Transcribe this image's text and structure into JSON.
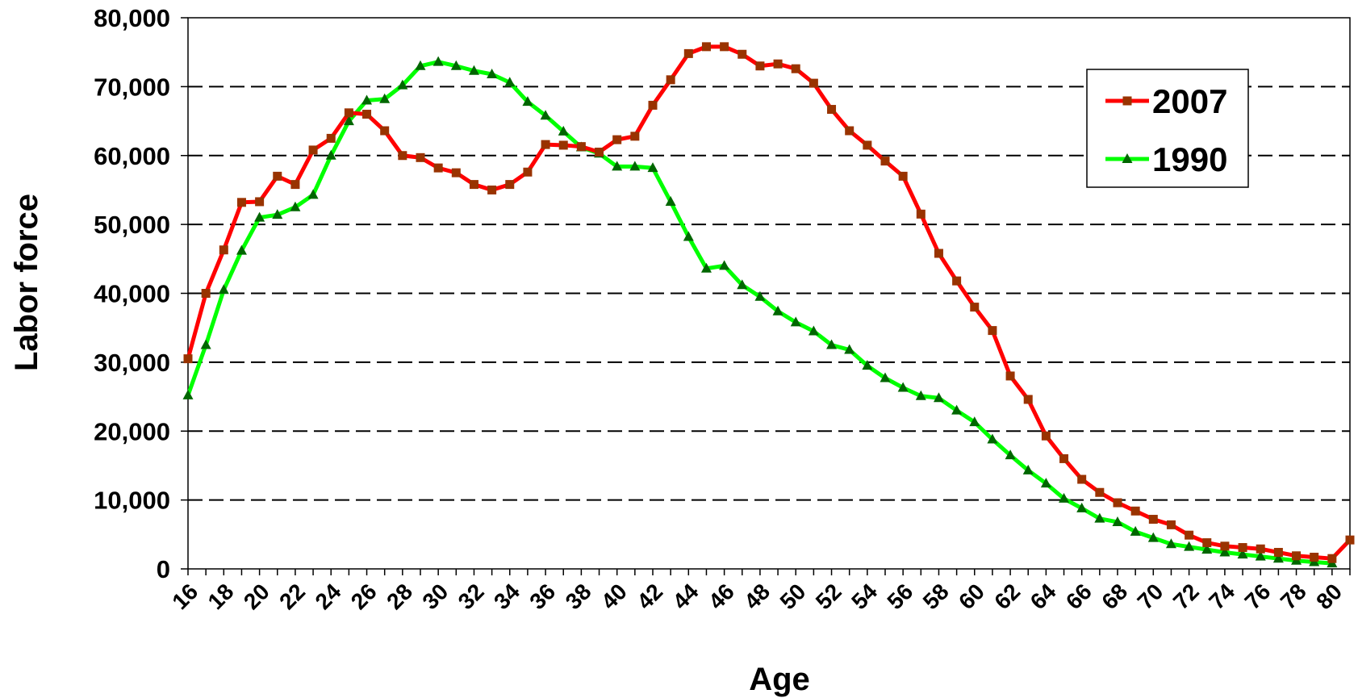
{
  "chart_data": {
    "type": "line",
    "title": "",
    "xlabel": "Age",
    "ylabel": "Labor force",
    "xlim": [
      16,
      81
    ],
    "ylim": [
      0,
      80000
    ],
    "y_ticks": [
      0,
      10000,
      20000,
      30000,
      40000,
      50000,
      60000,
      70000,
      80000
    ],
    "y_tick_labels": [
      "0",
      "10,000",
      "20,000",
      "30,000",
      "40,000",
      "50,000",
      "60,000",
      "70,000",
      "80,000"
    ],
    "x_ticks": [
      16,
      18,
      20,
      22,
      24,
      26,
      28,
      30,
      32,
      34,
      36,
      38,
      40,
      42,
      44,
      46,
      48,
      50,
      52,
      54,
      56,
      58,
      60,
      62,
      64,
      66,
      68,
      70,
      72,
      74,
      76,
      78,
      80
    ],
    "x_tick_labels": [
      "16",
      "18",
      "20",
      "22",
      "24",
      "26",
      "28",
      "30",
      "32",
      "34",
      "36",
      "38",
      "40",
      "42",
      "44",
      "46",
      "48",
      "50",
      "52",
      "54",
      "56",
      "58",
      "60",
      "62",
      "64",
      "66",
      "68",
      "70",
      "72",
      "74",
      "76",
      "78",
      "80"
    ],
    "grid": "horizontal dashed",
    "legend_position": "top-right",
    "series": [
      {
        "name": "2007",
        "color": "#ff0000",
        "marker_color": "#993300",
        "marker": "square",
        "x": [
          16,
          17,
          18,
          19,
          20,
          21,
          22,
          23,
          24,
          25,
          26,
          27,
          28,
          29,
          30,
          31,
          32,
          33,
          34,
          35,
          36,
          37,
          38,
          39,
          40,
          41,
          42,
          43,
          44,
          45,
          46,
          47,
          48,
          49,
          50,
          51,
          52,
          53,
          54,
          55,
          56,
          57,
          58,
          59,
          60,
          61,
          62,
          63,
          64,
          65,
          66,
          67,
          68,
          69,
          70,
          71,
          72,
          73,
          74,
          75,
          76,
          77,
          78,
          79,
          80,
          81
        ],
        "values": [
          30500,
          40000,
          46300,
          53200,
          53300,
          57000,
          55800,
          60800,
          62500,
          66200,
          66000,
          63600,
          60000,
          59700,
          58200,
          57500,
          55800,
          55000,
          55800,
          57600,
          61600,
          61500,
          61300,
          60500,
          62300,
          62800,
          67300,
          71000,
          74800,
          75800,
          75800,
          74700,
          73000,
          73300,
          72600,
          70500,
          66700,
          63600,
          61500,
          59200,
          57000,
          51500,
          45800,
          41800,
          38000,
          34600,
          28000,
          24600,
          19300,
          16000,
          13000,
          11100,
          9600,
          8400,
          7200,
          6400,
          4900,
          3800,
          3300,
          3100,
          2900,
          2400,
          1900,
          1700,
          1500,
          4200
        ]
      },
      {
        "name": "1990",
        "color": "#00ff00",
        "marker_color": "#006600",
        "marker": "triangle",
        "x": [
          16,
          17,
          18,
          19,
          20,
          21,
          22,
          23,
          24,
          25,
          26,
          27,
          28,
          29,
          30,
          31,
          32,
          33,
          34,
          35,
          36,
          37,
          38,
          39,
          40,
          41,
          42,
          43,
          44,
          45,
          46,
          47,
          48,
          49,
          50,
          51,
          52,
          53,
          54,
          55,
          56,
          57,
          58,
          59,
          60,
          61,
          62,
          63,
          64,
          65,
          66,
          67,
          68,
          69,
          70,
          71,
          72,
          73,
          74,
          75,
          76,
          77,
          78,
          79,
          80
        ],
        "values": [
          25200,
          32500,
          40500,
          46200,
          51000,
          51400,
          52500,
          54300,
          60000,
          65000,
          68000,
          68200,
          70200,
          73000,
          73600,
          73000,
          72300,
          71800,
          70600,
          67800,
          65800,
          63500,
          61200,
          60300,
          58400,
          58400,
          58200,
          53300,
          48200,
          43600,
          44000,
          41200,
          39500,
          37400,
          35800,
          34500,
          32500,
          31800,
          29500,
          27700,
          26300,
          25100,
          24800,
          23000,
          21300,
          18800,
          16500,
          14300,
          12400,
          10200,
          8800,
          7300,
          6800,
          5400,
          4500,
          3600,
          3200,
          2800,
          2400,
          2100,
          1800,
          1500,
          1200,
          1000,
          800
        ]
      }
    ]
  }
}
